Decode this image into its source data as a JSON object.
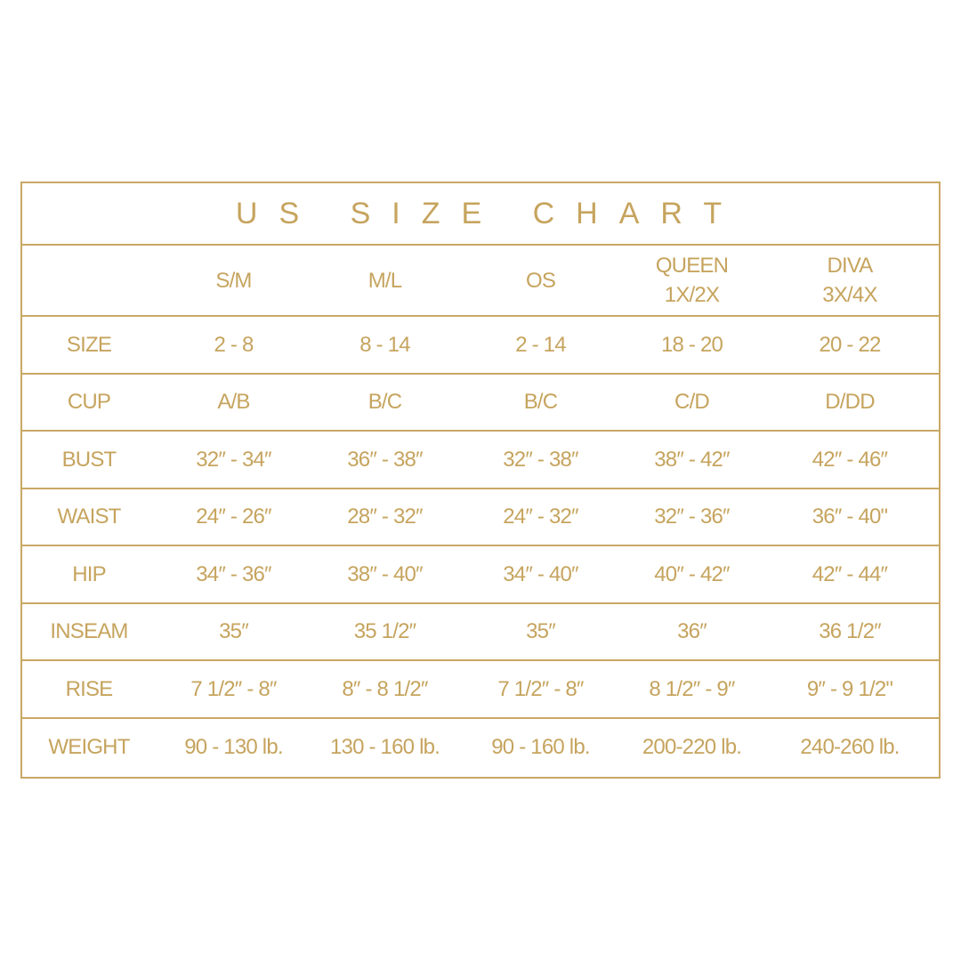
{
  "title": "US SIZE CHART",
  "colors": {
    "gold": "#c6a45e",
    "border": "#c9a865",
    "background": "#ffffff"
  },
  "columns": [
    "",
    "S/M",
    "M/L",
    "OS",
    "QUEEN\n1X/2X",
    "DIVA\n3X/4X"
  ],
  "rows": [
    {
      "label": "SIZE",
      "values": [
        "2 - 8",
        "8 - 14",
        "2 - 14",
        "18 - 20",
        "20 - 22"
      ]
    },
    {
      "label": "CUP",
      "values": [
        "A/B",
        "B/C",
        "B/C",
        "C/D",
        "D/DD"
      ]
    },
    {
      "label": "BUST",
      "values": [
        "32″ - 34″",
        "36″ - 38″",
        "32″ - 38″",
        "38″ - 42″",
        "42″ - 46″"
      ]
    },
    {
      "label": "WAIST",
      "values": [
        "24″ - 26″",
        "28″ - 32″",
        "24″ - 32″",
        "32″ - 36″",
        "36″ - 40\""
      ]
    },
    {
      "label": "HIP",
      "values": [
        "34″ - 36″",
        "38″ - 40″",
        "34″ - 40″",
        "40″ - 42″",
        "42″ - 44″"
      ]
    },
    {
      "label": "INSEAM",
      "values": [
        "35″",
        "35 1/2″",
        "35″",
        "36″",
        "36 1/2″"
      ]
    },
    {
      "label": "RISE",
      "values": [
        "7 1/2″ - 8″",
        "8″ - 8 1/2″",
        "7 1/2″ - 8″",
        "8 1/2″ - 9″",
        "9″ - 9 1/2\""
      ]
    },
    {
      "label": "WEIGHT",
      "values": [
        "90 - 130 lb.",
        "130 - 160 lb.",
        "90 - 160 lb.",
        "200-220 lb.",
        "240-260 lb."
      ]
    }
  ]
}
